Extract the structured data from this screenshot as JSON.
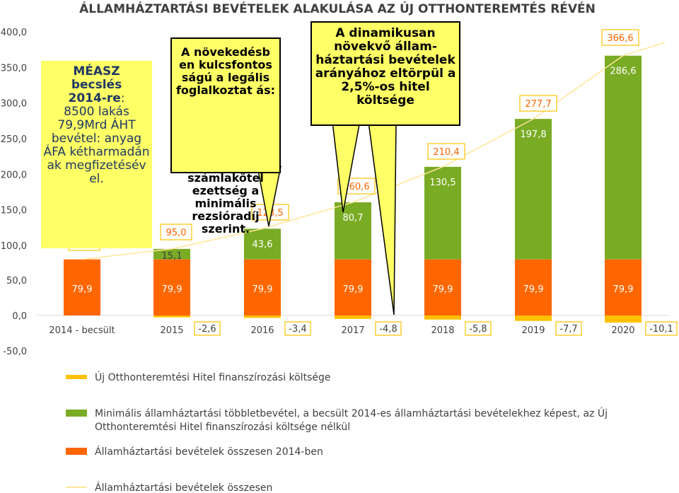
{
  "chart_data": {
    "type": "bar",
    "stacked": true,
    "title": "ÁLLAMHÁZTARTÁSI BEVÉTELEK ALAKULÁSA AZ ÚJ OTTHONTEREMTÉS RÉVÉN",
    "categories": [
      "2014 - becsült",
      "2015",
      "2016",
      "2017",
      "2018",
      "2019",
      "2020"
    ],
    "ylim": [
      -50,
      400
    ],
    "yticks": [
      "400,0",
      "350,0",
      "300,0",
      "250,0",
      "200,0",
      "150,0",
      "100,0",
      "50,0",
      "0,0",
      "-50,0"
    ],
    "ytick_values": [
      400,
      350,
      300,
      250,
      200,
      150,
      100,
      50,
      0,
      -50
    ],
    "series": [
      {
        "name": "Új Otthonteremtési Hitel finanszírozási költsége",
        "color": "#ffc000",
        "values": [
          0,
          -2.6,
          -3.4,
          -4.8,
          -5.8,
          -7.7,
          -10.1
        ],
        "labels": [
          "",
          "-2,6",
          "-3,4",
          "-4,8",
          "-5,8",
          "-7,7",
          "-10,1"
        ]
      },
      {
        "name": "Minimális államháztartási többletbevétel, a becsült 2014-es államháztartási bevételekhez képest, az Új Otthonteremtési Hitel finanszírozási költsége nélkül",
        "color": "#7aab25",
        "values": [
          0,
          15.1,
          43.6,
          80.7,
          130.5,
          197.8,
          286.6
        ],
        "labels": [
          "",
          "15,1",
          "43,6",
          "80,7",
          "130,5",
          "197,8",
          "286,6"
        ]
      },
      {
        "name": "Államháztartási bevételek összesen 2014-ben",
        "color": "#ff6600",
        "values": [
          79.9,
          79.9,
          79.9,
          79.9,
          79.9,
          79.9,
          79.9
        ],
        "labels": [
          "79,9",
          "79,9",
          "79,9",
          "79,9",
          "79,9",
          "79,9",
          "79,9"
        ]
      },
      {
        "name": "Államháztartási bevételek összesen",
        "color": "#ffe699",
        "type": "line",
        "values": [
          79.9,
          95.0,
          123.5,
          160.6,
          210.4,
          277.7,
          366.6
        ],
        "labels": [
          "79,9",
          "95,0",
          "123,5",
          "160,6",
          "210,4",
          "277,7",
          "366,6"
        ]
      }
    ],
    "legend": "bottom",
    "grid": false
  },
  "callouts": {
    "left": {
      "line1": "MÉASZ",
      "line2": "becslés",
      "line3": "2014-re",
      "line3_suffix": ":",
      "rest": "8500 lakás 79,9Mrd ÁHT bevétel: anyag ÁFA kétharmadán ak megfizetésév el."
    },
    "middle": {
      "text": "A növekedésb en kulcsfontos ságú a legális foglalkoztat ás:",
      "overflow": "számlakötel ezettség a minimális rezsióradíj szerint."
    },
    "right": {
      "text": "A dinamikusan növekvő állam-háztartási bevételek arányához eltörpül a 2,5%-os hitel költsége"
    }
  },
  "colors": {
    "orange": "#ff6600",
    "green": "#7aab25",
    "yellow": "#ffc000",
    "line": "#ffe699",
    "callout": "#ffff66"
  }
}
